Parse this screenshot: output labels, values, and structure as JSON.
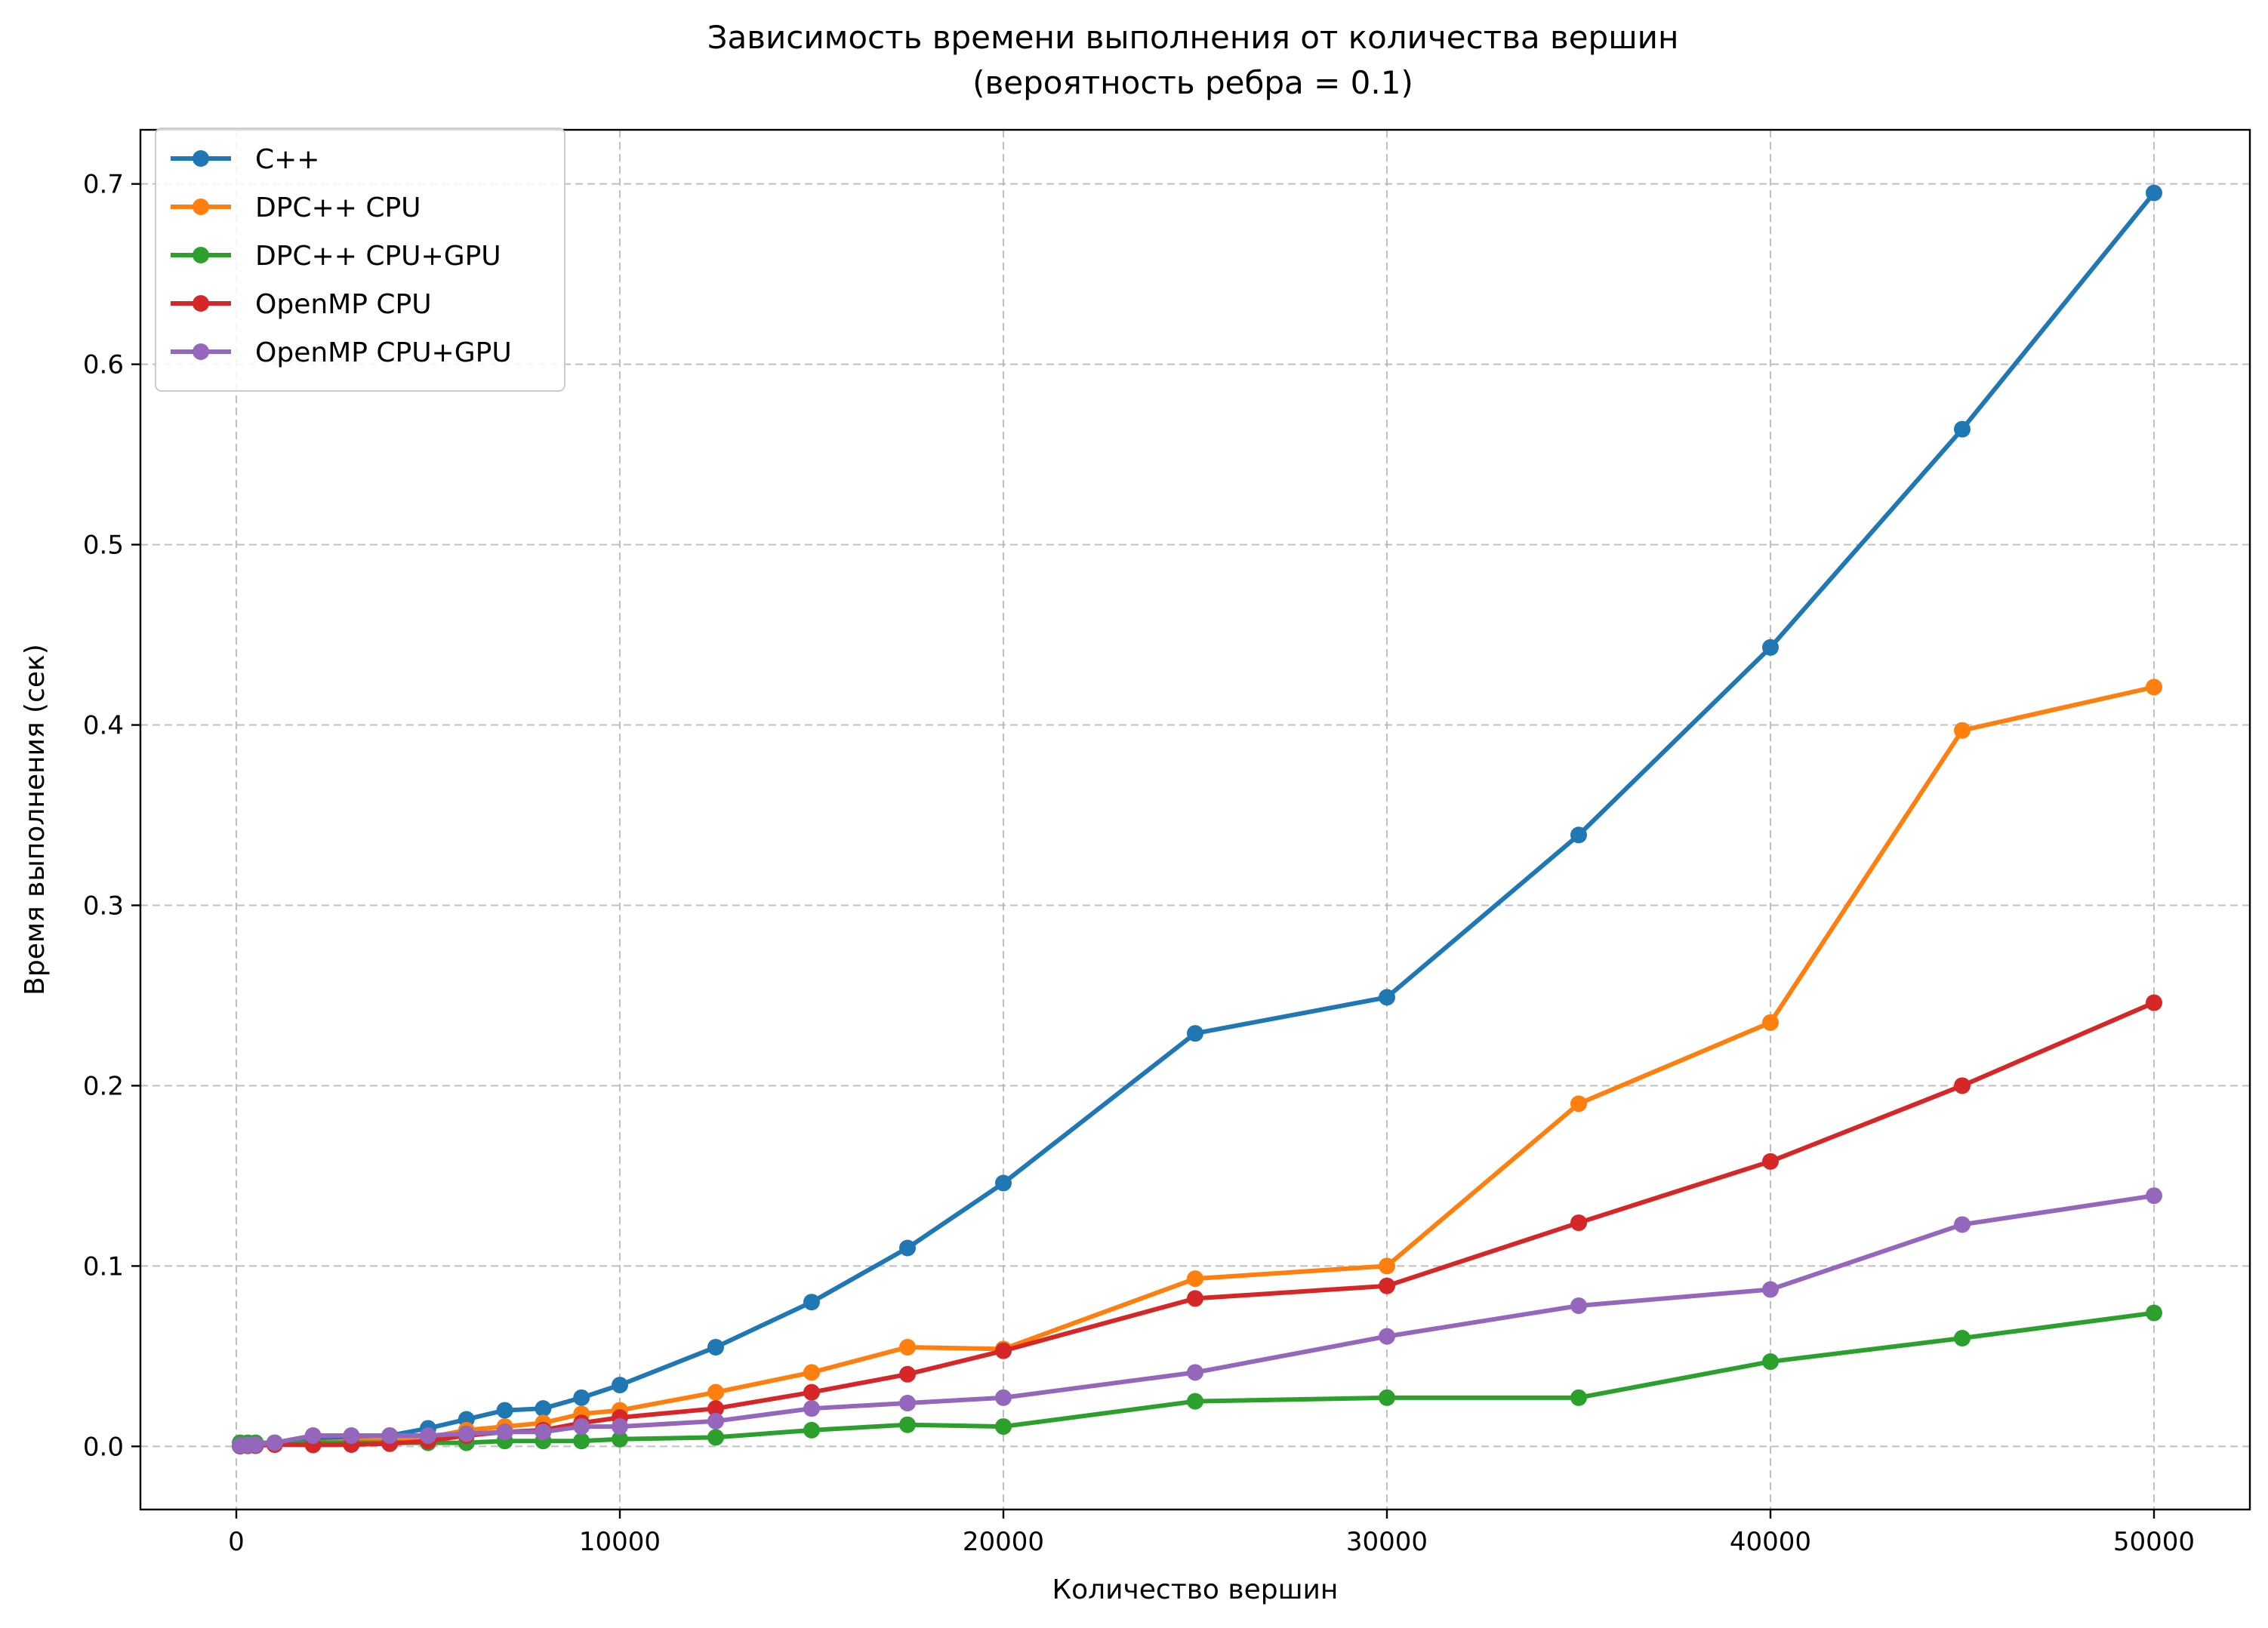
{
  "chart_data": {
    "type": "line",
    "title": "Зависимость времени выполнения от количества вершин",
    "subtitle": "(вероятность ребра = 0.1)",
    "xlabel": "Количество вершин",
    "ylabel": "Время выполнения (сек)",
    "xlim": [
      -2500,
      52500
    ],
    "ylim": [
      -0.035,
      0.73
    ],
    "xticks": [
      0,
      10000,
      20000,
      30000,
      40000,
      50000
    ],
    "yticks": [
      0.0,
      0.1,
      0.2,
      0.3,
      0.4,
      0.5,
      0.6,
      0.7
    ],
    "grid": true,
    "legend_position": "top-left",
    "x": [
      100,
      300,
      500,
      1000,
      2000,
      3000,
      4000,
      5000,
      6000,
      7000,
      8000,
      9000,
      10000,
      12500,
      15000,
      17500,
      20000,
      25000,
      30000,
      35000,
      40000,
      45000,
      50000
    ],
    "series": [
      {
        "name": "C++",
        "color": "#1f77b4",
        "values": [
          0.0001,
          0.0003,
          0.0005,
          0.001,
          0.004,
          0.005,
          0.006,
          0.01,
          0.015,
          0.02,
          0.021,
          0.027,
          0.034,
          0.055,
          0.08,
          0.11,
          0.146,
          0.229,
          0.249,
          0.339,
          0.443,
          0.564,
          0.695
        ]
      },
      {
        "name": "DPC++ CPU",
        "color": "#ff7f0e",
        "values": [
          0.0003,
          0.0004,
          0.0005,
          0.001,
          0.002,
          0.003,
          0.004,
          0.005,
          0.009,
          0.011,
          0.013,
          0.018,
          0.02,
          0.03,
          0.041,
          0.055,
          0.054,
          0.093,
          0.1,
          0.19,
          0.235,
          0.397,
          0.421
        ]
      },
      {
        "name": "DPC++ CPU+GPU",
        "color": "#2ca02c",
        "values": [
          0.002,
          0.002,
          0.002,
          0.002,
          0.002,
          0.002,
          0.002,
          0.002,
          0.002,
          0.003,
          0.003,
          0.003,
          0.004,
          0.005,
          0.009,
          0.012,
          0.011,
          0.025,
          0.027,
          0.027,
          0.047,
          0.06,
          0.074
        ]
      },
      {
        "name": "OpenMP CPU",
        "color": "#d62728",
        "values": [
          0.0002,
          0.0003,
          0.0004,
          0.001,
          0.0008,
          0.001,
          0.0015,
          0.003,
          0.006,
          0.008,
          0.009,
          0.013,
          0.016,
          0.021,
          0.03,
          0.04,
          0.053,
          0.082,
          0.089,
          0.124,
          0.158,
          0.2,
          0.246
        ]
      },
      {
        "name": "OpenMP CPU+GPU",
        "color": "#9467bd",
        "values": [
          0.0005,
          0.0007,
          0.001,
          0.002,
          0.006,
          0.006,
          0.006,
          0.006,
          0.007,
          0.008,
          0.008,
          0.011,
          0.011,
          0.014,
          0.021,
          0.024,
          0.027,
          0.041,
          0.061,
          0.078,
          0.087,
          0.123,
          0.139
        ]
      }
    ]
  }
}
